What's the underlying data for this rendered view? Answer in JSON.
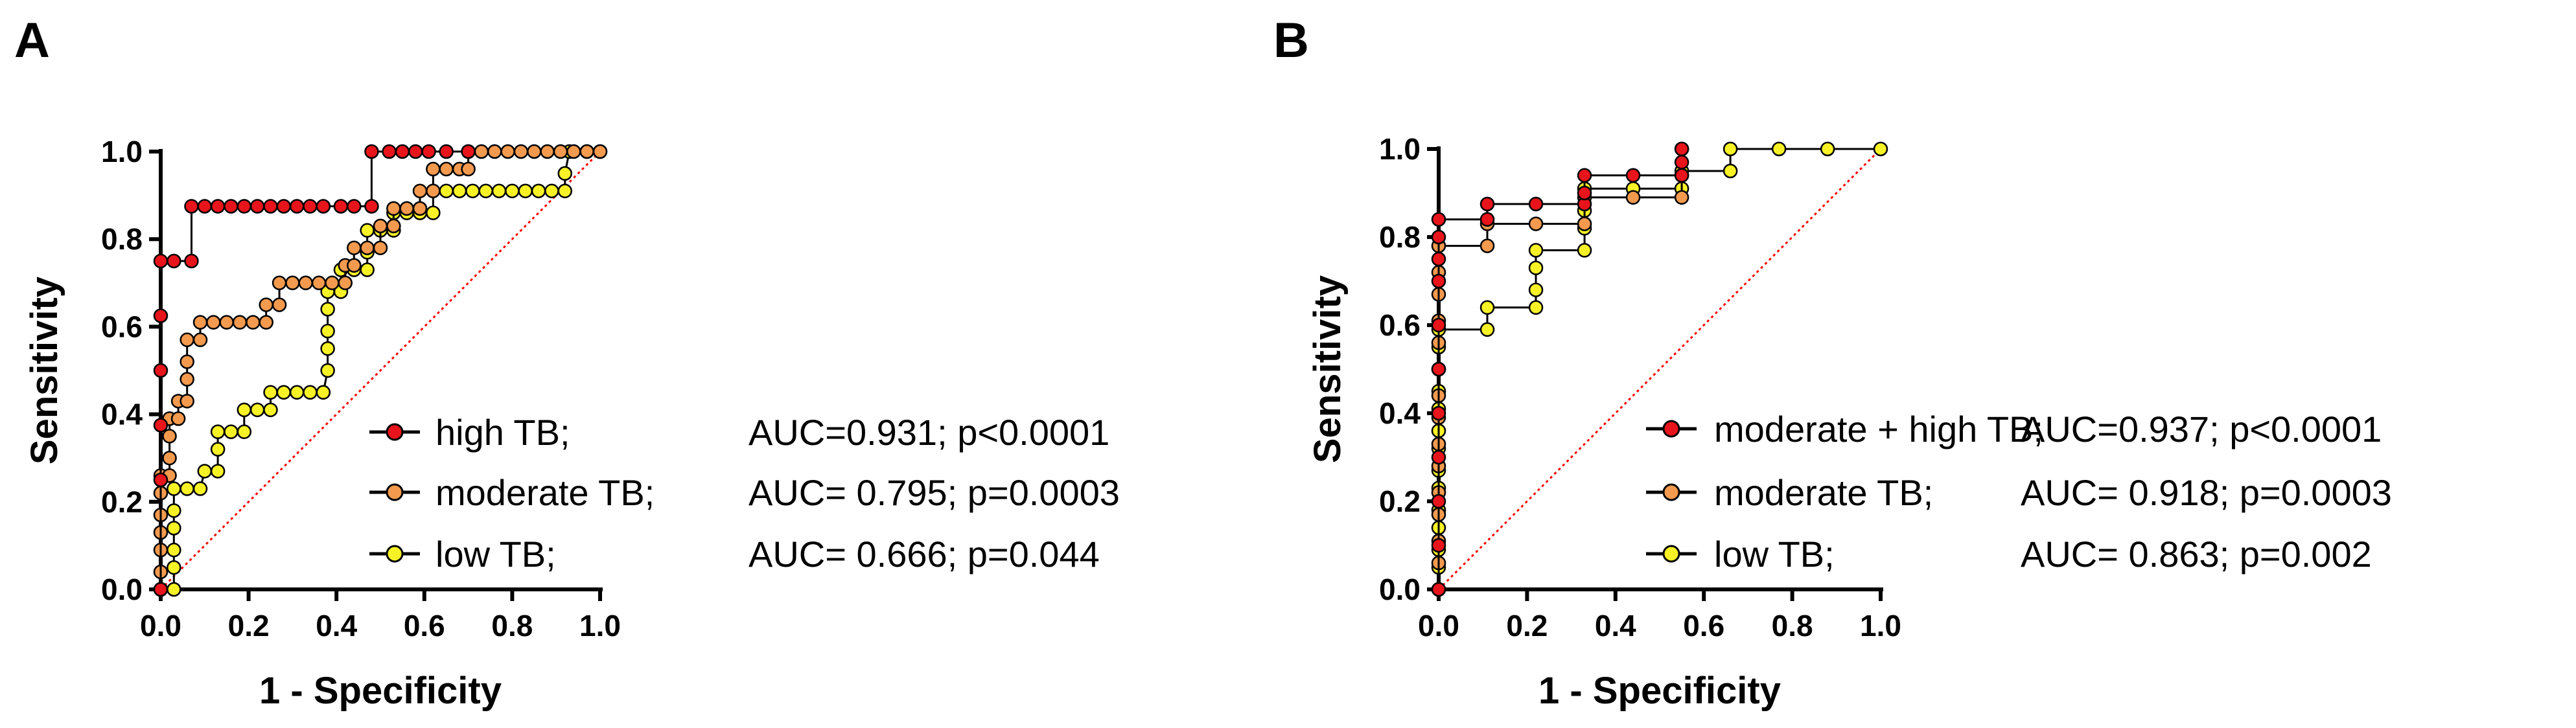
{
  "chart_data": [
    {
      "panel": "A",
      "type": "line",
      "xlabel": "1 - Specificity",
      "ylabel": "Sensitivity",
      "xlim": [
        0,
        1
      ],
      "ylim": [
        0,
        1
      ],
      "xticks": [
        "0.0",
        "0.2",
        "0.4",
        "0.6",
        "0.8",
        "1.0"
      ],
      "yticks": [
        "0.0",
        "0.2",
        "0.4",
        "0.6",
        "0.8",
        "1.0"
      ],
      "reference_line": {
        "style": "dotted",
        "color": "#ff0000"
      },
      "series": [
        {
          "name": "high TB;",
          "stats": "AUC=0.931; p<0.0001",
          "color": "#e8141b",
          "points": [
            [
              0,
              0
            ],
            [
              0,
              0.25
            ],
            [
              0,
              0.375
            ],
            [
              0,
              0.5
            ],
            [
              0,
              0.625
            ],
            [
              0,
              0.75
            ],
            [
              0.03,
              0.75
            ],
            [
              0.07,
              0.75
            ],
            [
              0.07,
              0.875
            ],
            [
              0.1,
              0.875
            ],
            [
              0.13,
              0.875
            ],
            [
              0.16,
              0.875
            ],
            [
              0.19,
              0.875
            ],
            [
              0.22,
              0.875
            ],
            [
              0.25,
              0.875
            ],
            [
              0.28,
              0.875
            ],
            [
              0.31,
              0.875
            ],
            [
              0.34,
              0.875
            ],
            [
              0.37,
              0.875
            ],
            [
              0.41,
              0.875
            ],
            [
              0.44,
              0.875
            ],
            [
              0.48,
              0.875
            ],
            [
              0.48,
              1.0
            ],
            [
              0.52,
              1.0
            ],
            [
              0.55,
              1.0
            ],
            [
              0.58,
              1.0
            ],
            [
              0.61,
              1.0
            ],
            [
              0.65,
              1.0
            ],
            [
              0.7,
              1.0
            ]
          ]
        },
        {
          "name": "moderate TB;",
          "stats": "AUC= 0.795; p=0.0003",
          "color": "#f39a4e",
          "points": [
            [
              0,
              0
            ],
            [
              0,
              0.04
            ],
            [
              0,
              0.09
            ],
            [
              0,
              0.13
            ],
            [
              0,
              0.17
            ],
            [
              0,
              0.22
            ],
            [
              0,
              0.26
            ],
            [
              0.02,
              0.26
            ],
            [
              0.02,
              0.3
            ],
            [
              0.02,
              0.35
            ],
            [
              0.02,
              0.39
            ],
            [
              0.04,
              0.39
            ],
            [
              0.04,
              0.43
            ],
            [
              0.06,
              0.43
            ],
            [
              0.06,
              0.48
            ],
            [
              0.06,
              0.52
            ],
            [
              0.06,
              0.57
            ],
            [
              0.09,
              0.57
            ],
            [
              0.09,
              0.61
            ],
            [
              0.12,
              0.61
            ],
            [
              0.15,
              0.61
            ],
            [
              0.18,
              0.61
            ],
            [
              0.21,
              0.61
            ],
            [
              0.24,
              0.61
            ],
            [
              0.24,
              0.65
            ],
            [
              0.27,
              0.65
            ],
            [
              0.27,
              0.7
            ],
            [
              0.3,
              0.7
            ],
            [
              0.33,
              0.7
            ],
            [
              0.36,
              0.7
            ],
            [
              0.39,
              0.7
            ],
            [
              0.42,
              0.7
            ],
            [
              0.42,
              0.74
            ],
            [
              0.44,
              0.74
            ],
            [
              0.44,
              0.78
            ],
            [
              0.47,
              0.78
            ],
            [
              0.5,
              0.78
            ],
            [
              0.5,
              0.83
            ],
            [
              0.53,
              0.83
            ],
            [
              0.53,
              0.87
            ],
            [
              0.56,
              0.87
            ],
            [
              0.59,
              0.87
            ],
            [
              0.59,
              0.91
            ],
            [
              0.62,
              0.91
            ],
            [
              0.62,
              0.96
            ],
            [
              0.65,
              0.96
            ],
            [
              0.68,
              0.96
            ],
            [
              0.7,
              0.96
            ],
            [
              0.7,
              1.0
            ],
            [
              0.73,
              1.0
            ],
            [
              0.76,
              1.0
            ],
            [
              0.79,
              1.0
            ],
            [
              0.82,
              1.0
            ],
            [
              0.85,
              1.0
            ],
            [
              0.88,
              1.0
            ],
            [
              0.91,
              1.0
            ],
            [
              0.94,
              1.0
            ],
            [
              0.97,
              1.0
            ],
            [
              1.0,
              1.0
            ]
          ]
        },
        {
          "name": "low TB;",
          "stats": "AUC= 0.666; p=0.044",
          "color": "#f7f226",
          "points": [
            [
              0,
              0
            ],
            [
              0.03,
              0
            ],
            [
              0.03,
              0.05
            ],
            [
              0.03,
              0.09
            ],
            [
              0.03,
              0.14
            ],
            [
              0.03,
              0.18
            ],
            [
              0.03,
              0.23
            ],
            [
              0.06,
              0.23
            ],
            [
              0.09,
              0.23
            ],
            [
              0.1,
              0.27
            ],
            [
              0.13,
              0.27
            ],
            [
              0.13,
              0.32
            ],
            [
              0.13,
              0.36
            ],
            [
              0.16,
              0.36
            ],
            [
              0.19,
              0.36
            ],
            [
              0.19,
              0.41
            ],
            [
              0.22,
              0.41
            ],
            [
              0.25,
              0.41
            ],
            [
              0.25,
              0.45
            ],
            [
              0.28,
              0.45
            ],
            [
              0.31,
              0.45
            ],
            [
              0.34,
              0.45
            ],
            [
              0.37,
              0.45
            ],
            [
              0.38,
              0.5
            ],
            [
              0.38,
              0.55
            ],
            [
              0.38,
              0.59
            ],
            [
              0.38,
              0.64
            ],
            [
              0.38,
              0.68
            ],
            [
              0.41,
              0.68
            ],
            [
              0.41,
              0.73
            ],
            [
              0.44,
              0.73
            ],
            [
              0.47,
              0.73
            ],
            [
              0.47,
              0.77
            ],
            [
              0.47,
              0.82
            ],
            [
              0.5,
              0.82
            ],
            [
              0.53,
              0.82
            ],
            [
              0.53,
              0.86
            ],
            [
              0.56,
              0.86
            ],
            [
              0.59,
              0.86
            ],
            [
              0.62,
              0.86
            ],
            [
              0.62,
              0.91
            ],
            [
              0.65,
              0.91
            ],
            [
              0.68,
              0.91
            ],
            [
              0.71,
              0.91
            ],
            [
              0.74,
              0.91
            ],
            [
              0.77,
              0.91
            ],
            [
              0.8,
              0.91
            ],
            [
              0.83,
              0.91
            ],
            [
              0.86,
              0.91
            ],
            [
              0.89,
              0.91
            ],
            [
              0.92,
              0.91
            ],
            [
              0.92,
              0.95
            ],
            [
              0.93,
              1.0
            ],
            [
              0.97,
              1.0
            ],
            [
              1.0,
              1.0
            ]
          ]
        }
      ]
    },
    {
      "panel": "B",
      "type": "line",
      "xlabel": "1 - Specificity",
      "ylabel": "Sensitivity",
      "xlim": [
        0,
        1
      ],
      "ylim": [
        0,
        1
      ],
      "xticks": [
        "0.0",
        "0.2",
        "0.4",
        "0.6",
        "0.8",
        "1.0"
      ],
      "yticks": [
        "0.0",
        "0.2",
        "0.4",
        "0.6",
        "0.8",
        "1.0"
      ],
      "reference_line": {
        "style": "dotted",
        "color": "#ff0000"
      },
      "series": [
        {
          "name": "moderate + high TB;",
          "stats": "AUC=0.937; p<0.0001",
          "color": "#e8141b",
          "points": [
            [
              0,
              0
            ],
            [
              0,
              0.1
            ],
            [
              0,
              0.2
            ],
            [
              0,
              0.3
            ],
            [
              0,
              0.4
            ],
            [
              0,
              0.5
            ],
            [
              0,
              0.6
            ],
            [
              0,
              0.7
            ],
            [
              0,
              0.75
            ],
            [
              0,
              0.8
            ],
            [
              0,
              0.84
            ],
            [
              0.11,
              0.84
            ],
            [
              0.11,
              0.875
            ],
            [
              0.22,
              0.875
            ],
            [
              0.33,
              0.875
            ],
            [
              0.33,
              0.9
            ],
            [
              0.33,
              0.94
            ],
            [
              0.44,
              0.94
            ],
            [
              0.55,
              0.94
            ],
            [
              0.55,
              0.97
            ],
            [
              0.55,
              1.0
            ]
          ]
        },
        {
          "name": "moderate TB;",
          "stats": "AUC= 0.918; p=0.0003",
          "color": "#f39a4e",
          "points": [
            [
              0,
              0
            ],
            [
              0,
              0.06
            ],
            [
              0,
              0.11
            ],
            [
              0,
              0.17
            ],
            [
              0,
              0.22
            ],
            [
              0,
              0.28
            ],
            [
              0,
              0.33
            ],
            [
              0,
              0.39
            ],
            [
              0,
              0.44
            ],
            [
              0,
              0.5
            ],
            [
              0,
              0.56
            ],
            [
              0,
              0.61
            ],
            [
              0,
              0.67
            ],
            [
              0,
              0.72
            ],
            [
              0,
              0.78
            ],
            [
              0.11,
              0.78
            ],
            [
              0.11,
              0.83
            ],
            [
              0.22,
              0.83
            ],
            [
              0.33,
              0.83
            ],
            [
              0.33,
              0.89
            ],
            [
              0.44,
              0.89
            ],
            [
              0.55,
              0.89
            ],
            [
              0.55,
              0.94
            ],
            [
              0.55,
              1.0
            ]
          ]
        },
        {
          "name": "low TB;",
          "stats": "AUC= 0.863; p=0.002",
          "color": "#f7f226",
          "points": [
            [
              0,
              0
            ],
            [
              0,
              0.05
            ],
            [
              0,
              0.09
            ],
            [
              0,
              0.14
            ],
            [
              0,
              0.18
            ],
            [
              0,
              0.23
            ],
            [
              0,
              0.27
            ],
            [
              0,
              0.32
            ],
            [
              0,
              0.36
            ],
            [
              0,
              0.41
            ],
            [
              0,
              0.45
            ],
            [
              0,
              0.5
            ],
            [
              0,
              0.55
            ],
            [
              0,
              0.59
            ],
            [
              0.11,
              0.59
            ],
            [
              0.11,
              0.64
            ],
            [
              0.22,
              0.64
            ],
            [
              0.22,
              0.68
            ],
            [
              0.22,
              0.73
            ],
            [
              0.22,
              0.77
            ],
            [
              0.33,
              0.77
            ],
            [
              0.33,
              0.82
            ],
            [
              0.33,
              0.86
            ],
            [
              0.33,
              0.91
            ],
            [
              0.44,
              0.91
            ],
            [
              0.55,
              0.91
            ],
            [
              0.55,
              0.95
            ],
            [
              0.66,
              0.95
            ],
            [
              0.66,
              1.0
            ],
            [
              0.77,
              1.0
            ],
            [
              0.88,
              1.0
            ],
            [
              1.0,
              1.0
            ]
          ]
        }
      ]
    }
  ]
}
